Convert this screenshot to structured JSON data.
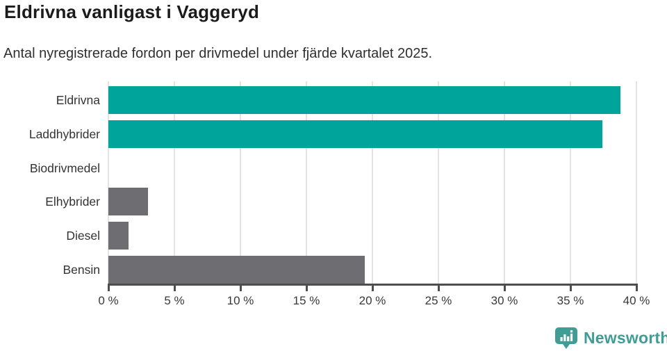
{
  "chart_data": {
    "type": "bar",
    "orientation": "horizontal",
    "title": "Eldrivna vanligast i Vaggeryd",
    "subtitle": "Antal nyregistrerade fordon per drivmedel under fjärde kvartalet 2025.",
    "categories": [
      "Eldrivna",
      "Laddhybrider",
      "Biodrivmedel",
      "Elhybrider",
      "Diesel",
      "Bensin"
    ],
    "values": [
      38.8,
      37.4,
      0,
      3.0,
      1.5,
      19.4
    ],
    "bar_colors": [
      "#00a49a",
      "#00a49a",
      "#6d6d72",
      "#6d6d72",
      "#6d6d72",
      "#6d6d72"
    ],
    "xlabel": "",
    "ylabel": "",
    "xlim": [
      0,
      40
    ],
    "xtick_values": [
      0,
      5,
      10,
      15,
      20,
      25,
      30,
      35,
      40
    ],
    "xtick_labels": [
      "0 %",
      "5 %",
      "10 %",
      "15 %",
      "20 %",
      "25 %",
      "30 %",
      "35 %",
      "40 %"
    ],
    "grid": "vertical-light",
    "legend": "none",
    "colors": {
      "highlight": "#00a49a",
      "default": "#6d6d72",
      "gridline": "#e3e3e3",
      "axis": "#4d4d4d",
      "title_text": "#1b1b1b",
      "body_text": "#333333"
    }
  },
  "footer": {
    "brand": "Newsworthy",
    "brand_color": "#3f9d95"
  }
}
